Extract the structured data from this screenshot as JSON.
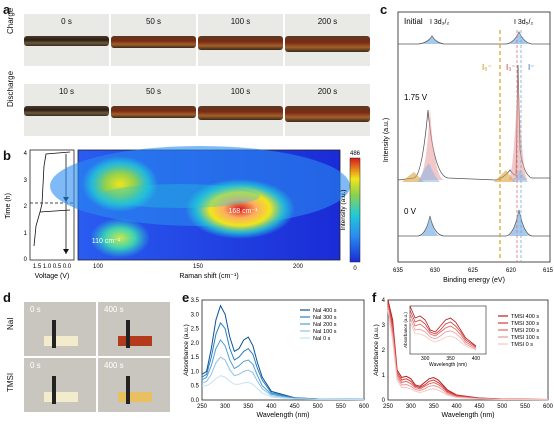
{
  "panels": {
    "a": "a",
    "b": "b",
    "c": "c",
    "d": "d",
    "e": "e",
    "f": "f"
  },
  "panel_a": {
    "row_labels": [
      "Charge",
      "Discharge"
    ],
    "charge_times": [
      "0 s",
      "50 s",
      "100 s",
      "200 s"
    ],
    "discharge_times": [
      "10 s",
      "50 s",
      "100 s",
      "200 s"
    ]
  },
  "panel_b": {
    "ylabel": "Time (h)",
    "xlabel_left": "Voltage (V)",
    "xticks_left": "1.5 1.0 0.5 0.0",
    "yticks": [
      "4",
      "3",
      "2",
      "1",
      "0"
    ],
    "xlabel_map": "Raman shift (cm⁻¹)",
    "xticks_map": [
      "100",
      "150",
      "200"
    ],
    "colorbar_label": "Intensity (a.u.)",
    "colorbar_max": "486",
    "colorbar_min": "0",
    "peak1": "168 cm⁻¹",
    "peak2": "110 cm⁻¹",
    "colors": {
      "low": "#1a2bd6",
      "mid": "#21c9d9",
      "high": "#f0e51c",
      "top": "#d7191c"
    }
  },
  "panel_c": {
    "xlabel": "Binding energy (eV)",
    "ylabel": "Intensity (a.u.)",
    "xticks": [
      "635",
      "630",
      "625",
      "620",
      "615"
    ],
    "labels": {
      "initial": "Initial",
      "v175": "1.75 V",
      "v0": "0 V",
      "i3d1": "I 3d₃/₂",
      "i3d2": "I 3d₅/₂",
      "i5": "I₅⁻",
      "i3": "I₃⁻",
      "i1": "I⁻"
    }
  },
  "panel_d": {
    "rows": [
      "NaI",
      "TMSI"
    ],
    "times": [
      "0 s",
      "400 s"
    ]
  },
  "chart_data": [
    {
      "type": "line",
      "panel": "e",
      "xlabel": "Wavelength (nm)",
      "ylabel": "Absorbance (a.u.)",
      "xlim": [
        250,
        600
      ],
      "ylim": [
        0,
        3.5
      ],
      "xticks": [
        "250",
        "300",
        "350",
        "400",
        "450",
        "500",
        "550",
        "600"
      ],
      "yticks": [
        "0.0",
        "0.5",
        "1.0",
        "1.5",
        "2.0",
        "2.5",
        "3.0",
        "3.5"
      ],
      "x": [
        250,
        260,
        270,
        280,
        290,
        300,
        310,
        320,
        330,
        340,
        350,
        360,
        370,
        380,
        400,
        450,
        500,
        550,
        600
      ],
      "series": [
        {
          "name": "NaI 400 s",
          "color": "#0b5394",
          "values": [
            0.9,
            1.0,
            1.8,
            2.8,
            3.3,
            3.0,
            2.2,
            1.7,
            1.8,
            2.1,
            2.2,
            1.9,
            1.3,
            0.8,
            0.3,
            0.08,
            0.04,
            0.03,
            0.02
          ]
        },
        {
          "name": "NaI 300 s",
          "color": "#2a7fc1",
          "values": [
            0.8,
            0.9,
            1.5,
            2.3,
            2.7,
            2.5,
            1.8,
            1.4,
            1.5,
            1.7,
            1.8,
            1.6,
            1.1,
            0.7,
            0.25,
            0.07,
            0.04,
            0.03,
            0.02
          ]
        },
        {
          "name": "NaI 200 s",
          "color": "#4f9fd6",
          "values": [
            0.7,
            0.8,
            1.2,
            1.8,
            2.1,
            1.9,
            1.4,
            1.1,
            1.2,
            1.35,
            1.4,
            1.25,
            0.85,
            0.5,
            0.2,
            0.06,
            0.03,
            0.02,
            0.02
          ]
        },
        {
          "name": "NaI 100 s",
          "color": "#8cc3e8",
          "values": [
            0.6,
            0.65,
            0.9,
            1.3,
            1.5,
            1.4,
            1.05,
            0.85,
            0.9,
            1.0,
            1.05,
            0.95,
            0.65,
            0.4,
            0.15,
            0.05,
            0.03,
            0.02,
            0.02
          ]
        },
        {
          "name": "NaI 0 s",
          "color": "#c4e2f5",
          "values": [
            0.5,
            0.5,
            0.6,
            0.75,
            0.85,
            0.8,
            0.65,
            0.55,
            0.55,
            0.6,
            0.62,
            0.55,
            0.4,
            0.25,
            0.1,
            0.04,
            0.02,
            0.02,
            0.01
          ]
        }
      ]
    },
    {
      "type": "line",
      "panel": "f",
      "xlabel": "Wavelength (nm)",
      "ylabel": "Absorbance (a.u.)",
      "xlim": [
        250,
        600
      ],
      "ylim": [
        0,
        4
      ],
      "xticks": [
        "250",
        "300",
        "350",
        "400",
        "450",
        "500",
        "550",
        "600"
      ],
      "yticks": [
        "0",
        "1",
        "2",
        "3",
        "4"
      ],
      "x": [
        250,
        260,
        270,
        280,
        290,
        300,
        310,
        320,
        330,
        340,
        350,
        360,
        370,
        380,
        400,
        450,
        500,
        550,
        600
      ],
      "series": [
        {
          "name": "TMSI 400 s",
          "color": "#b71c1c",
          "values": [
            4.0,
            3.2,
            1.2,
            0.9,
            0.95,
            0.85,
            0.6,
            0.55,
            0.7,
            0.85,
            0.9,
            0.8,
            0.6,
            0.4,
            0.2,
            0.08,
            0.04,
            0.03,
            0.02
          ]
        },
        {
          "name": "TMSI 300 s",
          "color": "#d23b3b",
          "values": [
            3.9,
            3.0,
            1.1,
            0.8,
            0.85,
            0.75,
            0.55,
            0.5,
            0.6,
            0.75,
            0.8,
            0.7,
            0.55,
            0.35,
            0.18,
            0.07,
            0.04,
            0.03,
            0.02
          ]
        },
        {
          "name": "TMSI 200 s",
          "color": "#e06666",
          "values": [
            3.8,
            2.8,
            1.0,
            0.7,
            0.75,
            0.65,
            0.5,
            0.45,
            0.55,
            0.65,
            0.7,
            0.62,
            0.48,
            0.3,
            0.15,
            0.06,
            0.03,
            0.02,
            0.02
          ]
        },
        {
          "name": "TMSI 100 s",
          "color": "#ea9999",
          "values": [
            3.7,
            2.6,
            0.9,
            0.6,
            0.62,
            0.55,
            0.42,
            0.38,
            0.45,
            0.55,
            0.58,
            0.52,
            0.4,
            0.25,
            0.12,
            0.05,
            0.03,
            0.02,
            0.02
          ]
        },
        {
          "name": "TMSI 0 s",
          "color": "#f4c7c3",
          "values": [
            3.6,
            2.4,
            0.8,
            0.5,
            0.5,
            0.45,
            0.35,
            0.3,
            0.35,
            0.42,
            0.45,
            0.4,
            0.3,
            0.2,
            0.1,
            0.04,
            0.02,
            0.02,
            0.01
          ]
        }
      ],
      "inset": {
        "xlabel": "Wavelength (nm)",
        "ylabel": "Absorbance (a.u.)",
        "xticks": [
          "300",
          "350",
          "400"
        ]
      }
    }
  ]
}
